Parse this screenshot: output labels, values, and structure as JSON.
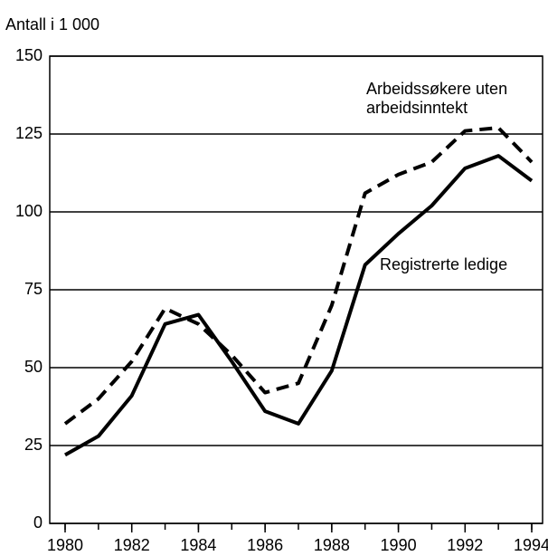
{
  "chart_data": {
    "type": "line",
    "ylabel": "Antall i 1 000",
    "x": [
      1980,
      1981,
      1982,
      1983,
      1984,
      1985,
      1986,
      1987,
      1988,
      1989,
      1990,
      1991,
      1992,
      1993,
      1994
    ],
    "series": [
      {
        "name": "Registrerte ledige",
        "color": "#000000",
        "dash": false,
        "values": [
          22,
          28,
          41,
          64,
          67,
          52,
          36,
          32,
          49,
          83,
          93,
          102,
          114,
          118,
          110
        ]
      },
      {
        "name": "Arbeidssøkere uten arbeidsinntekt",
        "color": "#000000",
        "dash": true,
        "values": [
          32,
          40,
          52,
          69,
          64,
          54,
          42,
          45,
          70,
          106,
          112,
          116,
          126,
          127,
          116
        ]
      }
    ],
    "xlim": [
      1980,
      1994
    ],
    "xticks": [
      1980,
      1982,
      1984,
      1986,
      1988,
      1990,
      1992,
      1994
    ],
    "ylim": [
      0,
      150
    ],
    "yticks": [
      0,
      25,
      50,
      75,
      100,
      125,
      150
    ],
    "grid": true
  }
}
